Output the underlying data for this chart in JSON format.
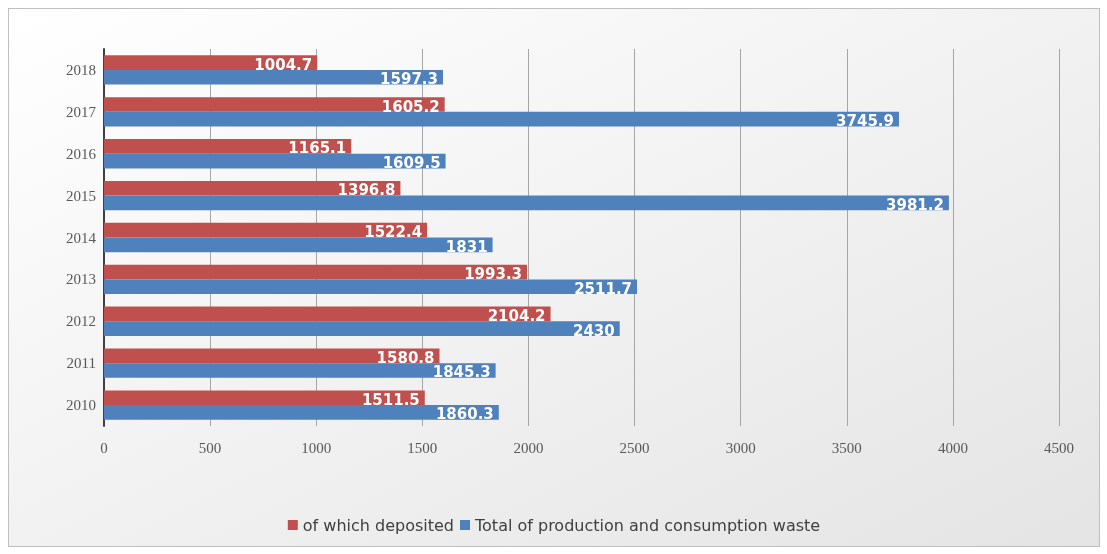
{
  "chart_data": {
    "type": "bar",
    "orientation": "horizontal",
    "categories": [
      "2018",
      "2017",
      "2016",
      "2015",
      "2014",
      "2013",
      "2012",
      "2011",
      "2010"
    ],
    "series": [
      {
        "name": "of which deposited",
        "color": "#c0504d",
        "values": [
          1004.7,
          1605.2,
          1165.1,
          1396.8,
          1522.4,
          1993.3,
          2104.2,
          1580.8,
          1511.5
        ]
      },
      {
        "name": "Total of production and consumption waste",
        "color": "#4f81bd",
        "values": [
          1597.3,
          3745.9,
          1609.5,
          3981.2,
          1831,
          2511.7,
          2430,
          1845.3,
          1860.3
        ]
      }
    ],
    "xlim": [
      0,
      4500
    ],
    "xticks": [
      0,
      500,
      1000,
      1500,
      2000,
      2500,
      3000,
      3500,
      4000,
      4500
    ],
    "grid": "x",
    "legend": "bottom",
    "data_labels": true
  }
}
